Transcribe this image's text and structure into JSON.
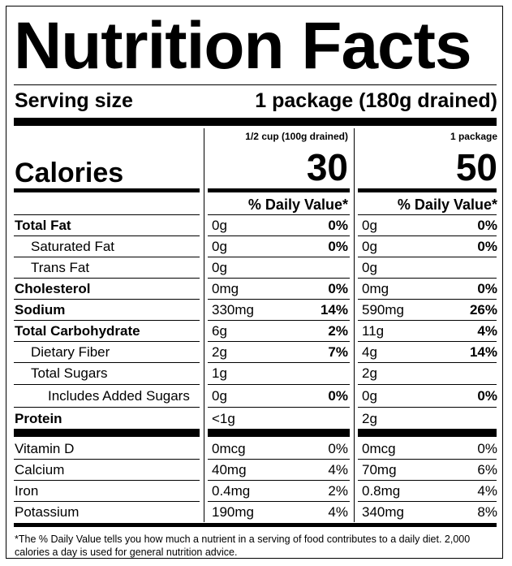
{
  "title": "Nutrition Facts",
  "serving": {
    "label": "Serving size",
    "value": "1 package (180g drained)"
  },
  "columns": [
    {
      "header": "1/2 cup (100g drained)",
      "calories": "30"
    },
    {
      "header": "1 package",
      "calories": "50"
    }
  ],
  "calories_label": "Calories",
  "dv_header": "% Daily Value*",
  "nutrients": [
    {
      "name": "Total Fat",
      "c1": {
        "amount": "0g",
        "dv": "0%"
      },
      "c2": {
        "amount": "0g",
        "dv": "0%"
      }
    },
    {
      "name": "Saturated Fat",
      "c1": {
        "amount": "0g",
        "dv": "0%"
      },
      "c2": {
        "amount": "0g",
        "dv": "0%"
      }
    },
    {
      "name": "Trans Fat",
      "c1": {
        "amount": "0g",
        "dv": ""
      },
      "c2": {
        "amount": "0g",
        "dv": ""
      }
    },
    {
      "name": "Cholesterol",
      "c1": {
        "amount": "0mg",
        "dv": "0%"
      },
      "c2": {
        "amount": "0mg",
        "dv": "0%"
      }
    },
    {
      "name": "Sodium",
      "c1": {
        "amount": "330mg",
        "dv": "14%"
      },
      "c2": {
        "amount": "590mg",
        "dv": "26%"
      }
    },
    {
      "name": "Total Carbohydrate",
      "c1": {
        "amount": "6g",
        "dv": "2%"
      },
      "c2": {
        "amount": "11g",
        "dv": "4%"
      }
    },
    {
      "name": "Dietary Fiber",
      "c1": {
        "amount": "2g",
        "dv": "7%"
      },
      "c2": {
        "amount": "4g",
        "dv": "14%"
      }
    },
    {
      "name": "Total Sugars",
      "c1": {
        "amount": "1g",
        "dv": ""
      },
      "c2": {
        "amount": "2g",
        "dv": ""
      }
    },
    {
      "name": "Includes Added Sugars",
      "c1": {
        "amount": "0g",
        "dv": "0%"
      },
      "c2": {
        "amount": "0g",
        "dv": "0%"
      }
    },
    {
      "name": "Protein",
      "c1": {
        "amount": "<1g",
        "dv": ""
      },
      "c2": {
        "amount": "2g",
        "dv": ""
      }
    }
  ],
  "vitamins": [
    {
      "name": "Vitamin D",
      "c1": {
        "amount": "0mcg",
        "dv": "0%"
      },
      "c2": {
        "amount": "0mcg",
        "dv": "0%"
      }
    },
    {
      "name": "Calcium",
      "c1": {
        "amount": "40mg",
        "dv": "4%"
      },
      "c2": {
        "amount": "70mg",
        "dv": "6%"
      }
    },
    {
      "name": "Iron",
      "c1": {
        "amount": "0.4mg",
        "dv": "2%"
      },
      "c2": {
        "amount": "0.8mg",
        "dv": "4%"
      }
    },
    {
      "name": "Potassium",
      "c1": {
        "amount": "190mg",
        "dv": "4%"
      },
      "c2": {
        "amount": "340mg",
        "dv": "8%"
      }
    }
  ],
  "footnote": "*The % Daily Value tells you how much a nutrient in a serving of food contributes to a daily diet. 2,000 calories a day is used for general nutrition advice."
}
